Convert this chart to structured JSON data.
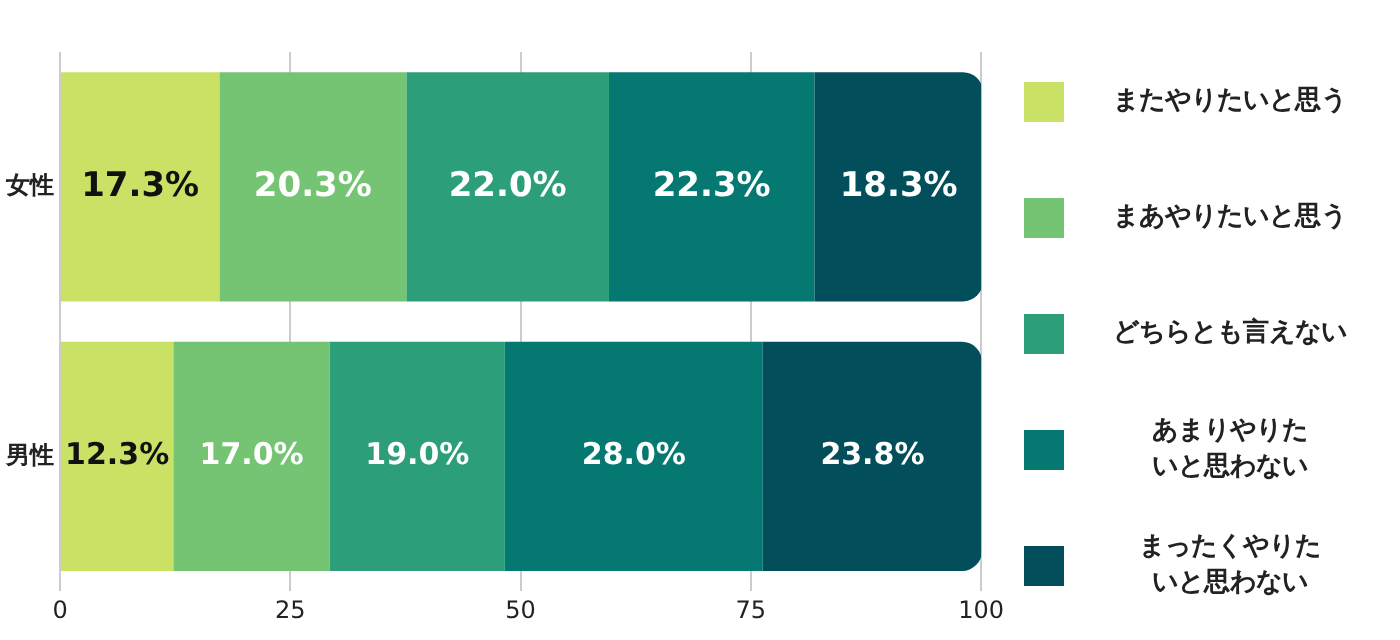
{
  "chart_data": {
    "type": "bar",
    "orientation": "horizontal",
    "stacked": true,
    "categories": [
      "女性",
      "男性"
    ],
    "series": [
      {
        "name": "またやりたいと思う",
        "color": "#c9e165",
        "values": [
          17.3,
          12.3
        ],
        "value_labels": [
          "17.3%",
          "12.3%"
        ]
      },
      {
        "name": "まあやりたいと思う",
        "color": "#75c473",
        "values": [
          20.3,
          17.0
        ],
        "value_labels": [
          "20.3%",
          "17.0%"
        ]
      },
      {
        "name": "どちらとも言えない",
        "color": "#2c9f7a",
        "values": [
          22.0,
          19.0
        ],
        "value_labels": [
          "22.0%",
          "19.0%"
        ]
      },
      {
        "name": "あまりやりたいと思わない",
        "color": "#047871",
        "values": [
          22.3,
          28.0
        ],
        "value_labels": [
          "22.3%",
          "28.0%"
        ]
      },
      {
        "name": "まったくやりたいと思わない",
        "color": "#024f5b",
        "values": [
          18.3,
          23.8
        ],
        "value_labels": [
          "18.3%",
          "23.8%"
        ]
      }
    ],
    "xlim": [
      0,
      100
    ],
    "xticks": [
      0,
      25,
      50,
      75,
      100
    ],
    "grid": "x",
    "legend": "right"
  }
}
